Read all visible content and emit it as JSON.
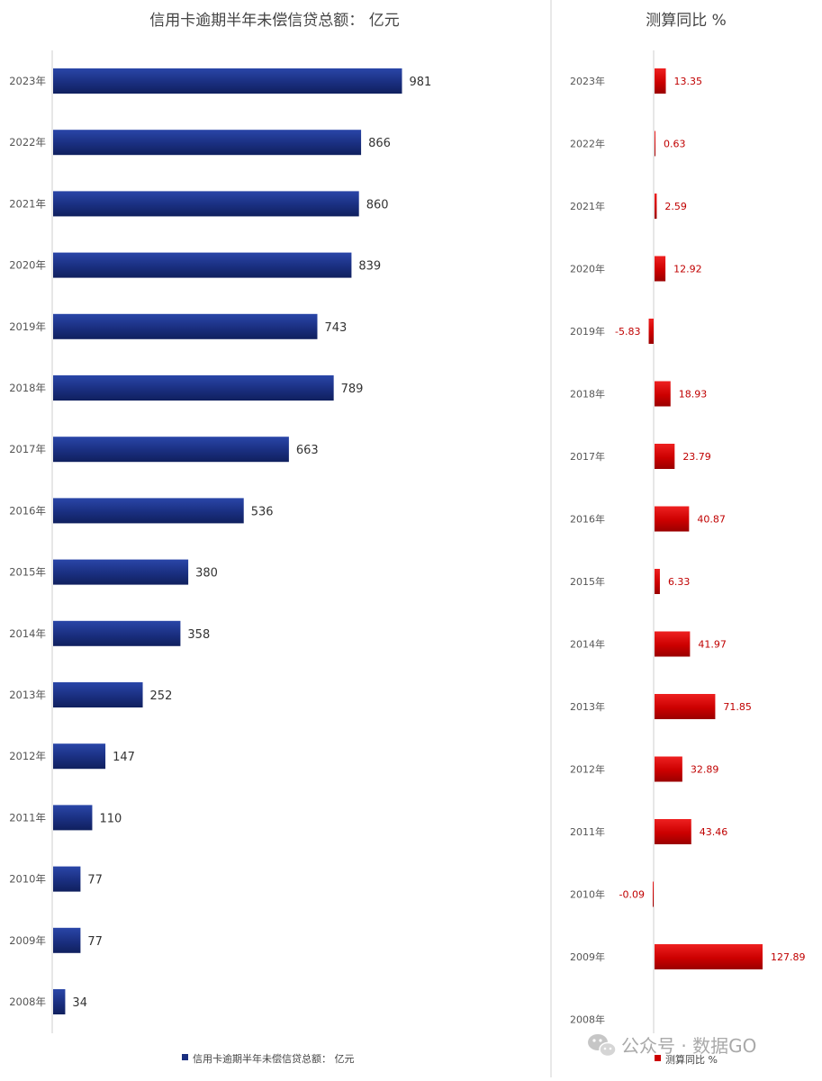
{
  "chart_data": [
    {
      "type": "bar",
      "orientation": "horizontal",
      "title": "信用卡逾期半年未偿信贷总额： 亿元",
      "legend": {
        "label": "信用卡逾期半年未偿信贷总额： 亿元",
        "position": "bottom"
      },
      "categories": [
        "2023年",
        "2022年",
        "2021年",
        "2020年",
        "2019年",
        "2018年",
        "2017年",
        "2016年",
        "2015年",
        "2014年",
        "2013年",
        "2012年",
        "2011年",
        "2010年",
        "2009年",
        "2008年"
      ],
      "values": [
        981,
        866,
        860,
        839,
        743,
        789,
        663,
        536,
        380,
        358,
        252,
        147,
        110,
        77,
        77,
        34
      ],
      "xlim": [
        0,
        1000
      ],
      "grid": false,
      "color": "#1a2f80"
    },
    {
      "type": "bar",
      "orientation": "horizontal",
      "title": "测算同比 %",
      "legend": {
        "label": "测算同比 %",
        "position": "bottom"
      },
      "categories": [
        "2023年",
        "2022年",
        "2021年",
        "2020年",
        "2019年",
        "2018年",
        "2017年",
        "2016年",
        "2015年",
        "2014年",
        "2013年",
        "2012年",
        "2011年",
        "2010年",
        "2009年",
        "2008年"
      ],
      "values": [
        13.35,
        0.63,
        2.59,
        12.92,
        -5.83,
        18.93,
        23.79,
        40.87,
        6.33,
        41.97,
        71.85,
        32.89,
        43.46,
        -0.09,
        127.89,
        null
      ],
      "labels": [
        "13.35",
        "0.63",
        "2.59",
        "12.92",
        "-5.83",
        "18.93",
        "23.79",
        "40.87",
        "6.33",
        "41.97",
        "71.85",
        "32.89",
        "43.46",
        "-0.09",
        "127.89",
        ""
      ],
      "xlim": [
        -10,
        170
      ],
      "grid": false,
      "color": "#cc0000"
    }
  ],
  "watermark": {
    "text": "公众号 · 数据GO"
  }
}
